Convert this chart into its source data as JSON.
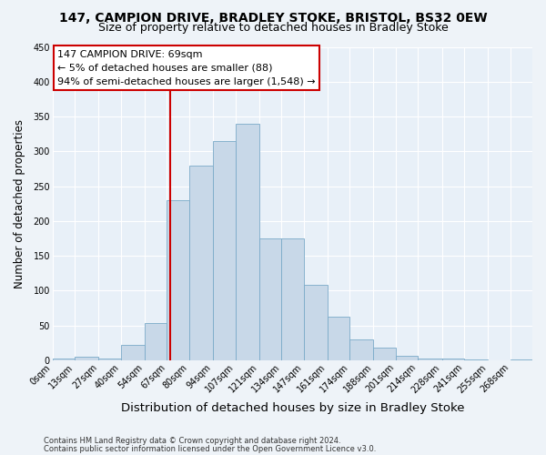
{
  "title1": "147, CAMPION DRIVE, BRADLEY STOKE, BRISTOL, BS32 0EW",
  "title2": "Size of property relative to detached houses in Bradley Stoke",
  "xlabel": "Distribution of detached houses by size in Bradley Stoke",
  "ylabel": "Number of detached properties",
  "footer1": "Contains HM Land Registry data © Crown copyright and database right 2024.",
  "footer2": "Contains public sector information licensed under the Open Government Licence v3.0.",
  "bin_labels": [
    "0sqm",
    "13sqm",
    "27sqm",
    "40sqm",
    "54sqm",
    "67sqm",
    "80sqm",
    "94sqm",
    "107sqm",
    "121sqm",
    "134sqm",
    "147sqm",
    "161sqm",
    "174sqm",
    "188sqm",
    "201sqm",
    "214sqm",
    "228sqm",
    "241sqm",
    "255sqm",
    "268sqm"
  ],
  "bin_edges": [
    0,
    13,
    27,
    40,
    54,
    67,
    80,
    94,
    107,
    121,
    134,
    147,
    161,
    174,
    188,
    201,
    214,
    228,
    241,
    255,
    268,
    281
  ],
  "bar_heights": [
    2,
    5,
    2,
    22,
    53,
    230,
    280,
    315,
    340,
    175,
    175,
    108,
    62,
    30,
    18,
    7,
    2,
    2,
    1,
    0,
    1
  ],
  "bar_color": "#c8d8e8",
  "bar_edge_color": "#7aaac8",
  "vline_x": 69,
  "vline_color": "#cc0000",
  "annotation_line1": "147 CAMPION DRIVE: 69sqm",
  "annotation_line2": "← 5% of detached houses are smaller (88)",
  "annotation_line3": "94% of semi-detached houses are larger (1,548) →",
  "annotation_box_color": "#ffffff",
  "annotation_box_edge": "#cc0000",
  "ylim": [
    0,
    450
  ],
  "yticks": [
    0,
    50,
    100,
    150,
    200,
    250,
    300,
    350,
    400,
    450
  ],
  "bg_color": "#eef3f8",
  "plot_bg_color": "#e8f0f8",
  "grid_color": "#ffffff",
  "title1_fontsize": 10,
  "title2_fontsize": 9,
  "annotation_fontsize": 8,
  "xlabel_fontsize": 9.5,
  "ylabel_fontsize": 8.5,
  "tick_fontsize": 7,
  "footer_fontsize": 6
}
